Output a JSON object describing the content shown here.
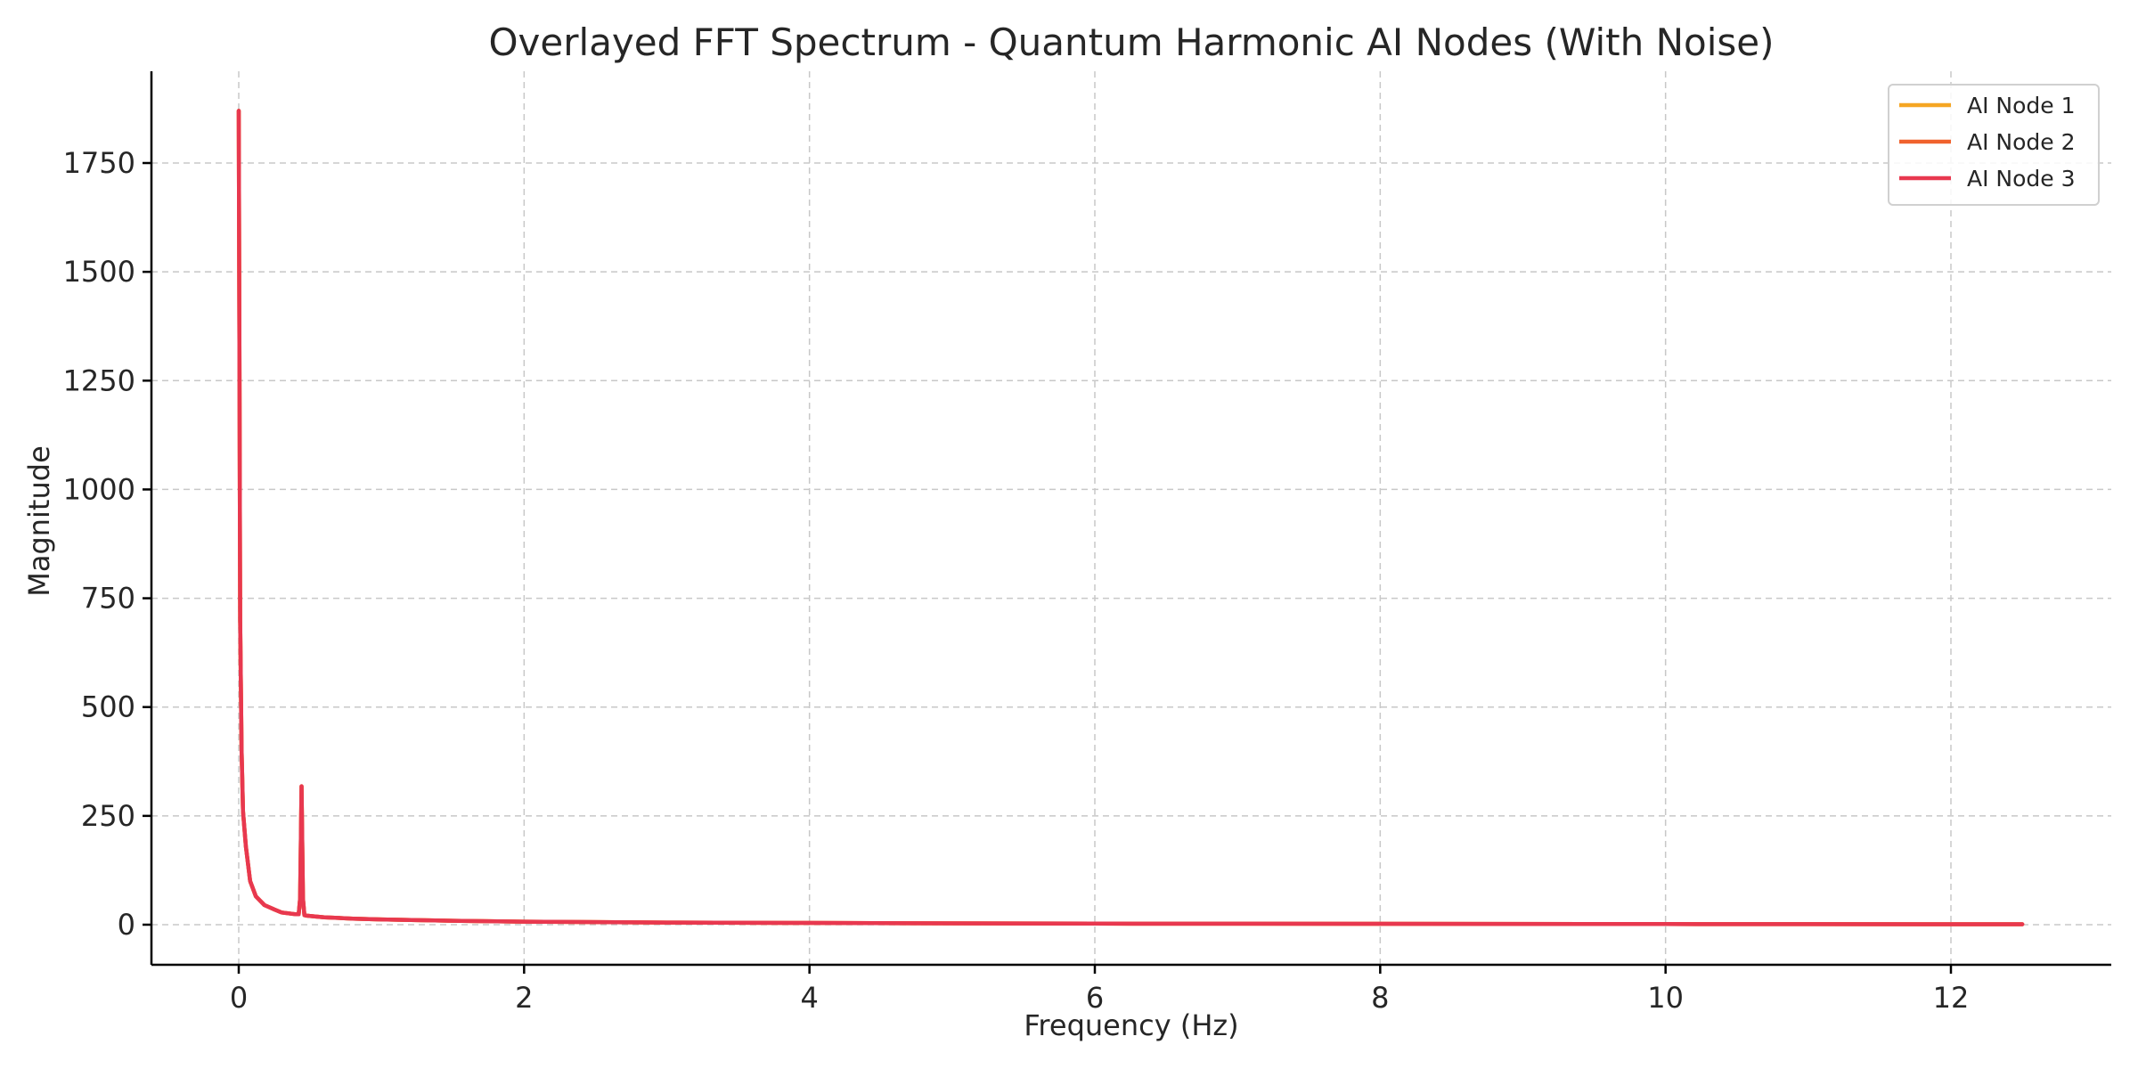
{
  "chart_data": {
    "type": "line",
    "title": "Overlayed FFT Spectrum - Quantum Harmonic AI Nodes (With Noise)",
    "xlabel": "Frequency (Hz)",
    "ylabel": "Magnitude",
    "xlim": [
      -1.55,
      12.5
    ],
    "ylim": [
      -90,
      1950
    ],
    "xticks": [
      0,
      2,
      4,
      6,
      8,
      10,
      12
    ],
    "yticks": [
      0,
      250,
      500,
      750,
      1000,
      1250,
      1500,
      1750
    ],
    "xtick_labels": [
      "0",
      "2",
      "4",
      "6",
      "8",
      "10",
      "12"
    ],
    "ytick_labels": [
      "0",
      "250",
      "500",
      "750",
      "1000",
      "1250",
      "1500",
      "1750"
    ],
    "grid": true,
    "legend": "top-right",
    "series": [
      {
        "name": "AI Node 1",
        "color": "#f5a623",
        "x": [
          0,
          0.005,
          0.01,
          0.02,
          0.03,
          0.05,
          0.08,
          0.12,
          0.18,
          0.25,
          0.3,
          0.35,
          0.4,
          0.42,
          0.43,
          0.44,
          0.45,
          0.46,
          0.47,
          0.5,
          0.6,
          0.8,
          1.0,
          1.5,
          2.0,
          3.0,
          4.0,
          5.0,
          6.0,
          8.0,
          10.0,
          12.5
        ],
        "y": [
          1870,
          1300,
          700,
          400,
          260,
          180,
          100,
          65,
          45,
          35,
          28,
          26,
          24,
          24,
          60,
          318,
          60,
          22,
          21,
          20,
          17,
          14,
          12,
          9,
          7,
          5,
          4,
          3,
          2.5,
          2,
          1.5,
          1
        ]
      },
      {
        "name": "AI Node 2",
        "color": "#f0622d",
        "x": [
          0,
          0.005,
          0.01,
          0.02,
          0.03,
          0.05,
          0.08,
          0.12,
          0.18,
          0.25,
          0.3,
          0.35,
          0.4,
          0.42,
          0.43,
          0.44,
          0.45,
          0.46,
          0.47,
          0.5,
          0.6,
          0.8,
          1.0,
          1.5,
          2.0,
          3.0,
          4.0,
          5.0,
          6.0,
          8.0,
          10.0,
          12.5
        ],
        "y": [
          1870,
          1300,
          700,
          400,
          260,
          180,
          100,
          65,
          45,
          35,
          28,
          26,
          24,
          24,
          60,
          318,
          60,
          22,
          21,
          20,
          17,
          14,
          12,
          9,
          7,
          5,
          4,
          3,
          2.5,
          2,
          1.5,
          1
        ]
      },
      {
        "name": "AI Node 3",
        "color": "#e8384f",
        "x": [
          0,
          0.005,
          0.01,
          0.02,
          0.03,
          0.05,
          0.08,
          0.12,
          0.18,
          0.25,
          0.3,
          0.35,
          0.4,
          0.42,
          0.43,
          0.44,
          0.45,
          0.46,
          0.47,
          0.5,
          0.6,
          0.8,
          1.0,
          1.5,
          2.0,
          3.0,
          4.0,
          5.0,
          6.0,
          8.0,
          10.0,
          12.5
        ],
        "y": [
          1870,
          1300,
          700,
          400,
          260,
          180,
          100,
          65,
          45,
          35,
          28,
          26,
          24,
          24,
          60,
          318,
          60,
          22,
          21,
          20,
          17,
          14,
          12,
          9,
          7,
          5,
          4,
          3,
          2.5,
          2,
          1.5,
          1
        ]
      }
    ]
  }
}
